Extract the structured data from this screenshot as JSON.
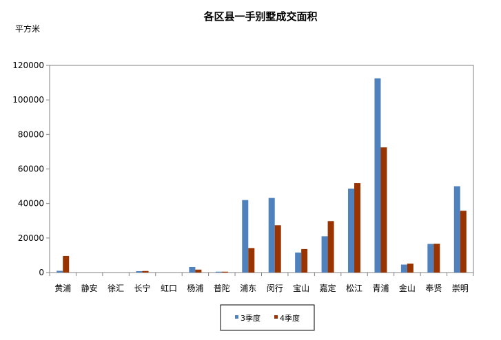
{
  "chart_data": {
    "type": "bar",
    "title": "各区县一手别墅成交面积",
    "ylabel": "平方米",
    "xlabel": "",
    "ylim": [
      0,
      120000
    ],
    "yticks": [
      0,
      20000,
      40000,
      60000,
      80000,
      100000,
      120000
    ],
    "categories": [
      "黄浦",
      "静安",
      "徐汇",
      "长宁",
      "虹口",
      "杨浦",
      "普陀",
      "浦东",
      "闵行",
      "宝山",
      "嘉定",
      "松江",
      "青浦",
      "金山",
      "奉贤",
      "崇明"
    ],
    "series": [
      {
        "name": "3季度",
        "color": "#4F81BD",
        "values": [
          1000,
          0,
          0,
          800,
          0,
          3200,
          500,
          42000,
          43200,
          11600,
          21000,
          48600,
          112500,
          4600,
          16600,
          50000
        ]
      },
      {
        "name": "4季度",
        "color": "#993300",
        "values": [
          9600,
          0,
          0,
          900,
          0,
          1700,
          500,
          14200,
          27400,
          13600,
          29800,
          51800,
          72500,
          5200,
          16700,
          35800
        ]
      }
    ],
    "grid": false,
    "legend_position": "bottom-center"
  }
}
